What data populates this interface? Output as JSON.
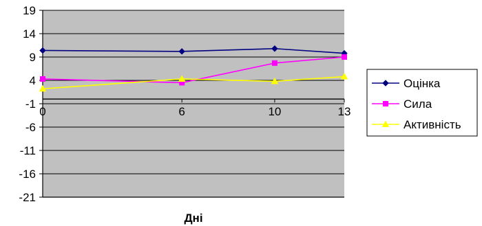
{
  "chart_data": {
    "type": "line",
    "x": [
      0,
      6,
      10,
      13
    ],
    "xticks": [
      "0",
      "6",
      "10",
      "13"
    ],
    "xlabel": "Дні",
    "ylabel": "",
    "ylim": [
      -21,
      19
    ],
    "yticks": [
      19,
      14,
      9,
      4,
      -1,
      -6,
      -11,
      -16,
      -21
    ],
    "grid": true,
    "legend_position": "right",
    "plot_background": "#c0c0c0",
    "series": [
      {
        "name": "Оцінка",
        "values": [
          10.4,
          10.2,
          10.8,
          9.8
        ],
        "color": "#000080",
        "marker": "diamond"
      },
      {
        "name": "Сила",
        "values": [
          4.3,
          3.5,
          7.7,
          9.0
        ],
        "color": "#ff00ff",
        "marker": "square"
      },
      {
        "name": "Активність",
        "values": [
          2.2,
          4.3,
          3.8,
          4.8
        ],
        "color": "#ffff00",
        "marker": "triangle"
      }
    ]
  }
}
